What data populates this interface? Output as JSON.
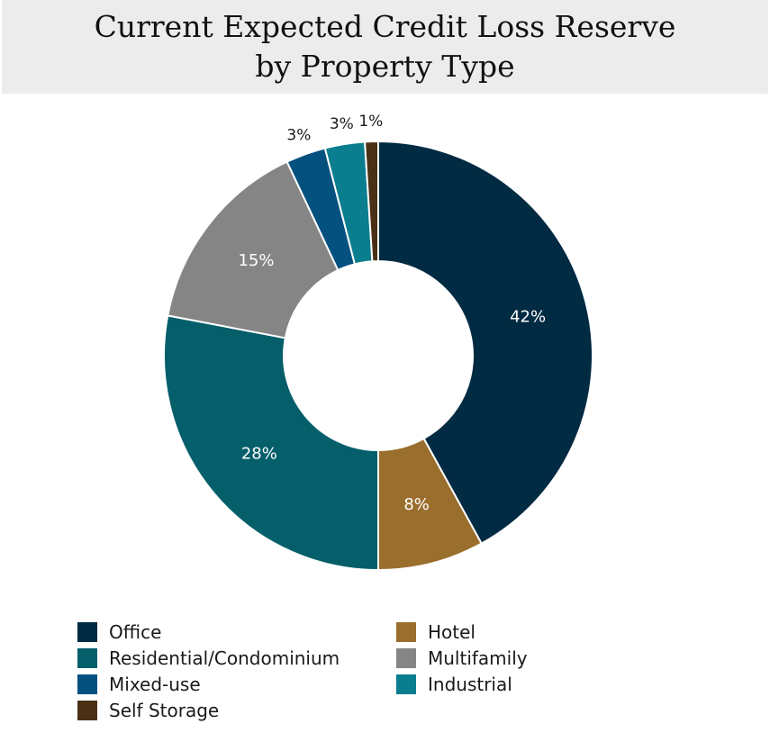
{
  "chart_data": {
    "type": "pie",
    "donut": true,
    "title_lines": [
      "Current Expected Credit Loss Reserve",
      "by Property Type"
    ],
    "slices": [
      {
        "name": "Office",
        "value": 42,
        "label": "42%",
        "color": "#012a43"
      },
      {
        "name": "Hotel",
        "value": 8,
        "label": "8%",
        "color": "#9a6e2c"
      },
      {
        "name": "Residential/Condominium",
        "value": 28,
        "label": "28%",
        "color": "#045f6b"
      },
      {
        "name": "Multifamily",
        "value": 15,
        "label": "15%",
        "color": "#858585"
      },
      {
        "name": "Mixed-use",
        "value": 3,
        "label": "3%",
        "color": "#04507f"
      },
      {
        "name": "Industrial",
        "value": 3,
        "label": "3%",
        "color": "#0a7d8e"
      },
      {
        "name": "Self Storage",
        "value": 1,
        "label": "1%",
        "color": "#4a3116"
      }
    ],
    "legend": [
      {
        "name": "Office",
        "color": "#012a43"
      },
      {
        "name": "Hotel",
        "color": "#9a6e2c"
      },
      {
        "name": "Residential/Condominium",
        "color": "#045f6b"
      },
      {
        "name": "Multifamily",
        "color": "#858585"
      },
      {
        "name": "Mixed-use",
        "color": "#04507f"
      },
      {
        "name": "Industrial",
        "color": "#0a7d8e"
      },
      {
        "name": "Self Storage",
        "color": "#4a3116"
      }
    ],
    "legend_position": "bottom"
  }
}
